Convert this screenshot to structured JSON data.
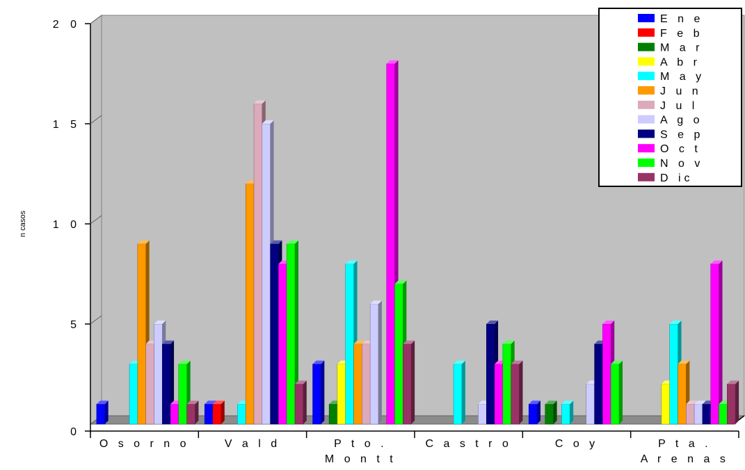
{
  "chart_data": {
    "type": "bar",
    "title": "",
    "xlabel": "",
    "ylabel": "n casos",
    "ylim": [
      0,
      20
    ],
    "yticks": [
      0,
      5,
      10,
      15,
      20
    ],
    "ytick_labels": [
      "0",
      "5",
      "1 0",
      "1 5",
      "2 0"
    ],
    "grid": false,
    "legend_position": "top-right",
    "categories": [
      [
        "O s o r n o"
      ],
      [
        "V a l d"
      ],
      [
        "P t o .",
        "M o n t t"
      ],
      [
        "C a s t r o"
      ],
      [
        "C o y"
      ],
      [
        "P t a .",
        "A r e n a s"
      ]
    ],
    "series": [
      {
        "name": "E n e",
        "color": "#0000ff",
        "values": [
          1,
          1,
          3,
          0,
          1,
          0
        ]
      },
      {
        "name": "F e b",
        "color": "#ff0000",
        "values": [
          0,
          1,
          0,
          0,
          0,
          0
        ]
      },
      {
        "name": "M a r",
        "color": "#008000",
        "values": [
          0,
          0,
          1,
          0,
          1,
          0
        ]
      },
      {
        "name": "A b r",
        "color": "#ffff00",
        "values": [
          0,
          0,
          3,
          0,
          0,
          2
        ]
      },
      {
        "name": "M a y",
        "color": "#00ffff",
        "values": [
          3,
          1,
          8,
          3,
          1,
          5
        ]
      },
      {
        "name": "J u n",
        "color": "#ff9900",
        "values": [
          9,
          12,
          4,
          0,
          0,
          3
        ]
      },
      {
        "name": "J u l",
        "color": "#ddaabb",
        "values": [
          4,
          16,
          4,
          0,
          0,
          1
        ]
      },
      {
        "name": "A g o",
        "color": "#ccccff",
        "values": [
          5,
          15,
          6,
          1,
          2,
          1
        ]
      },
      {
        "name": "S e p",
        "color": "#000080",
        "values": [
          4,
          9,
          0,
          5,
          4,
          1
        ]
      },
      {
        "name": "O c t",
        "color": "#ff00ff",
        "values": [
          1,
          8,
          18,
          3,
          5,
          8
        ]
      },
      {
        "name": "N o v",
        "color": "#00ff00",
        "values": [
          3,
          9,
          7,
          4,
          3,
          1
        ]
      },
      {
        "name": "D ic",
        "color": "#993366",
        "values": [
          1,
          2,
          4,
          3,
          0,
          2
        ]
      }
    ]
  }
}
